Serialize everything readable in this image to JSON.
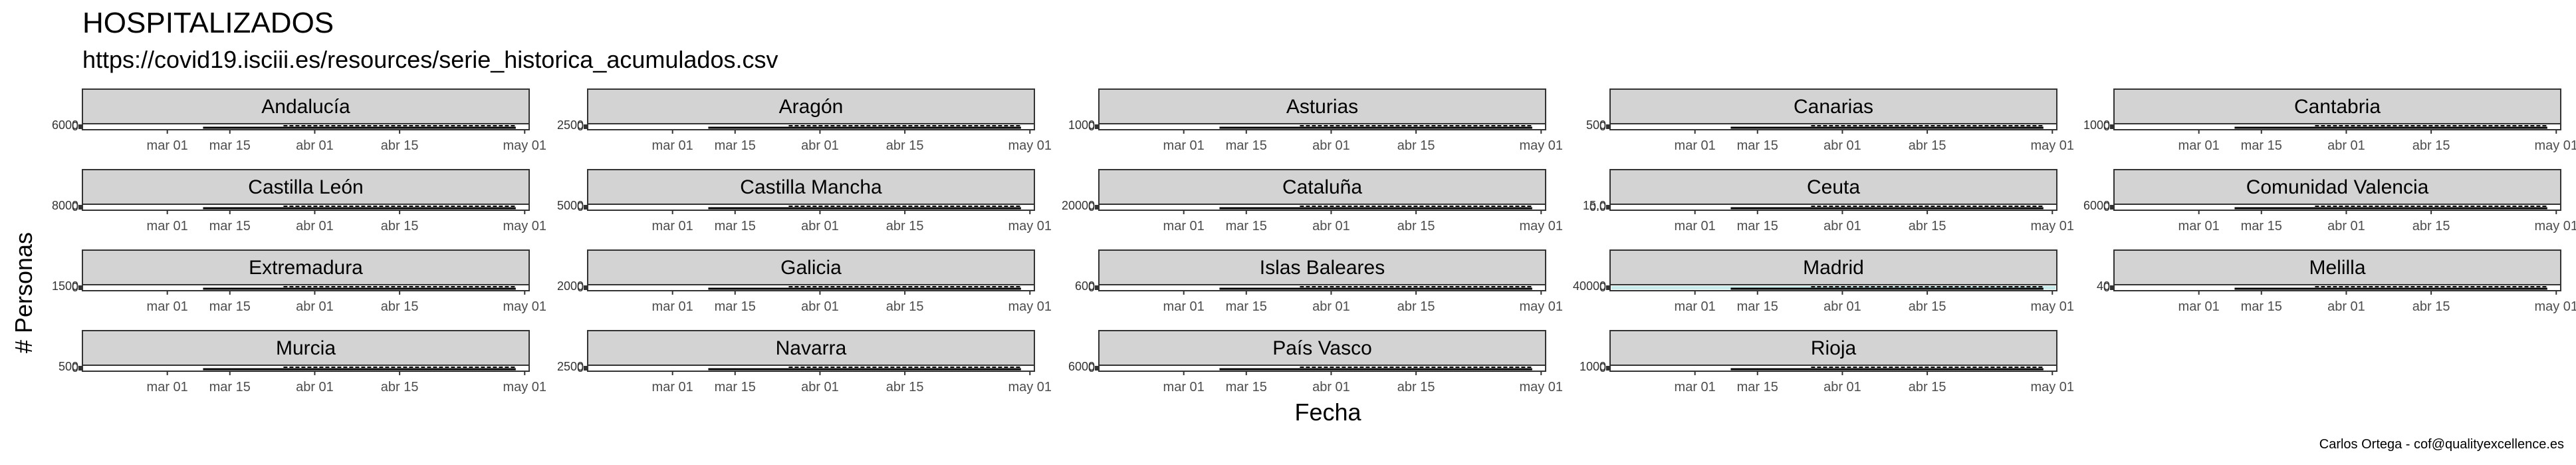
{
  "title": "HOSPITALIZADOS",
  "subtitle": "https://covid19.isciii.es/resources/serie_historica_acumulados.csv",
  "caption": "Carlos Ortega - cof@qualityexcellence.es",
  "chart_data": {
    "type": "area",
    "xlabel": "Fecha",
    "ylabel": "# Personas",
    "x_ticks": [
      "mar 01",
      "mar 15",
      "abr 01",
      "abr 15",
      "may 01"
    ],
    "facets": [
      {
        "name": "Andalucía",
        "ytick_labels": [
          "0",
          "6000"
        ]
      },
      {
        "name": "Aragón",
        "ytick_labels": [
          "0",
          "2500"
        ]
      },
      {
        "name": "Asturias",
        "ytick_labels": [
          "0",
          "1000"
        ]
      },
      {
        "name": "Canarias",
        "ytick_labels": [
          "0",
          "500"
        ]
      },
      {
        "name": "Cantabria",
        "ytick_labels": [
          "0",
          "1000"
        ]
      },
      {
        "name": "Castilla León",
        "ytick_labels": [
          "0",
          "8000"
        ]
      },
      {
        "name": "Castilla Mancha",
        "ytick_labels": [
          "0",
          "5000"
        ]
      },
      {
        "name": "Cataluña",
        "ytick_labels": [
          "0",
          "20000"
        ]
      },
      {
        "name": "Ceuta",
        "ytick_labels": [
          "0.0",
          "15.0"
        ]
      },
      {
        "name": "Comunidad Valencia",
        "ytick_labels": [
          "0",
          "6000"
        ]
      },
      {
        "name": "Extremadura",
        "ytick_labels": [
          "0",
          "1500"
        ]
      },
      {
        "name": "Galicia",
        "ytick_labels": [
          "0",
          "2000"
        ]
      },
      {
        "name": "Islas Baleares",
        "ytick_labels": [
          "0",
          "600"
        ]
      },
      {
        "name": "Madrid",
        "ytick_labels": [
          "0",
          "40000"
        ]
      },
      {
        "name": "Melilla",
        "ytick_labels": [
          "0",
          "40"
        ]
      },
      {
        "name": "Murcia",
        "ytick_labels": [
          "0",
          "500"
        ]
      },
      {
        "name": "Navarra",
        "ytick_labels": [
          "0",
          "2500"
        ]
      },
      {
        "name": "País Vasco",
        "ytick_labels": [
          "0",
          "6000"
        ]
      },
      {
        "name": "Rioja",
        "ytick_labels": [
          "0",
          "1000"
        ]
      }
    ],
    "highlight_fill": "#c8ecec",
    "grid": false
  }
}
